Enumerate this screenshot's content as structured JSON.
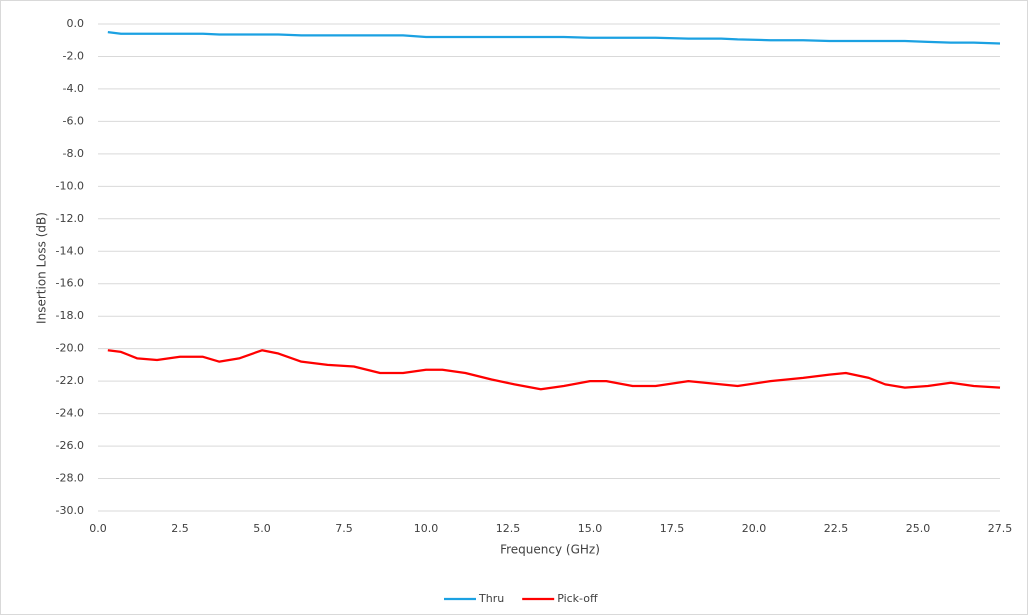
{
  "chart_data": {
    "type": "line",
    "x_label": "Frequency (GHz)",
    "y_label": "Insertion Loss (dB)",
    "x": [
      0.3,
      0.7,
      1.2,
      1.8,
      2.5,
      3.2,
      3.7,
      4.3,
      5.0,
      5.5,
      6.2,
      7.0,
      7.8,
      8.6,
      9.3,
      10.0,
      10.5,
      11.2,
      12.0,
      12.7,
      13.5,
      14.2,
      15.0,
      15.5,
      16.3,
      17.0,
      18.0,
      19.0,
      19.5,
      20.5,
      21.5,
      22.3,
      22.8,
      23.5,
      24.0,
      24.6,
      25.3,
      26.0,
      26.7,
      27.5
    ],
    "series": [
      {
        "name": "Thru",
        "color": "#1ba1e2",
        "values": [
          -0.5,
          -0.6,
          -0.6,
          -0.6,
          -0.6,
          -0.6,
          -0.65,
          -0.65,
          -0.65,
          -0.65,
          -0.7,
          -0.7,
          -0.7,
          -0.7,
          -0.7,
          -0.8,
          -0.8,
          -0.8,
          -0.8,
          -0.8,
          -0.8,
          -0.8,
          -0.85,
          -0.85,
          -0.85,
          -0.85,
          -0.9,
          -0.9,
          -0.95,
          -1.0,
          -1.0,
          -1.05,
          -1.05,
          -1.05,
          -1.05,
          -1.05,
          -1.1,
          -1.15,
          -1.15,
          -1.2
        ]
      },
      {
        "name": "Pick-off",
        "color": "#ff0000",
        "values": [
          -20.1,
          -20.2,
          -20.6,
          -20.7,
          -20.5,
          -20.5,
          -20.8,
          -20.6,
          -20.1,
          -20.3,
          -20.8,
          -21.0,
          -21.1,
          -21.5,
          -21.5,
          -21.3,
          -21.3,
          -21.5,
          -21.9,
          -22.2,
          -22.5,
          -22.3,
          -22.0,
          -22.0,
          -22.3,
          -22.3,
          -22.0,
          -22.2,
          -22.3,
          -22.0,
          -21.8,
          -21.6,
          -21.5,
          -21.8,
          -22.2,
          -22.4,
          -22.3,
          -22.1,
          -22.3,
          -22.4
        ]
      }
    ],
    "xlim": [
      0,
      27.5
    ],
    "xticks": [
      {
        "value": 0,
        "label": "0.0"
      },
      2.5,
      {
        "value": 5,
        "label": "5.0"
      },
      7.5,
      {
        "value": 10,
        "label": "10.0"
      },
      12.5,
      {
        "value": 15,
        "label": "15.0"
      },
      17.5,
      {
        "value": 20,
        "label": "20.0"
      },
      22.5,
      {
        "value": 25,
        "label": "25.0"
      },
      27.5
    ],
    "ylim": [
      -30,
      0
    ],
    "yticks": [
      {
        "value": 0,
        "label": "0.0"
      },
      {
        "value": -2,
        "label": "-2.0"
      },
      {
        "value": -4,
        "label": "-4.0"
      },
      {
        "value": -6,
        "label": "-6.0"
      },
      {
        "value": -8,
        "label": "-8.0"
      },
      {
        "value": -10,
        "label": "-10.0"
      },
      {
        "value": -12,
        "label": "-12.0"
      },
      {
        "value": -14,
        "label": "-14.0"
      },
      {
        "value": -16,
        "label": "-16.0"
      },
      {
        "value": -18,
        "label": "-18.0"
      },
      {
        "value": -20,
        "label": "-20.0"
      },
      {
        "value": -22,
        "label": "-22.0"
      },
      {
        "value": -24,
        "label": "-24.0"
      },
      {
        "value": -26,
        "label": "-26.0"
      },
      {
        "value": -28,
        "label": "-28.0"
      },
      {
        "value": -30,
        "label": "-30.0"
      }
    ],
    "grid": true,
    "legend": "bottom"
  }
}
